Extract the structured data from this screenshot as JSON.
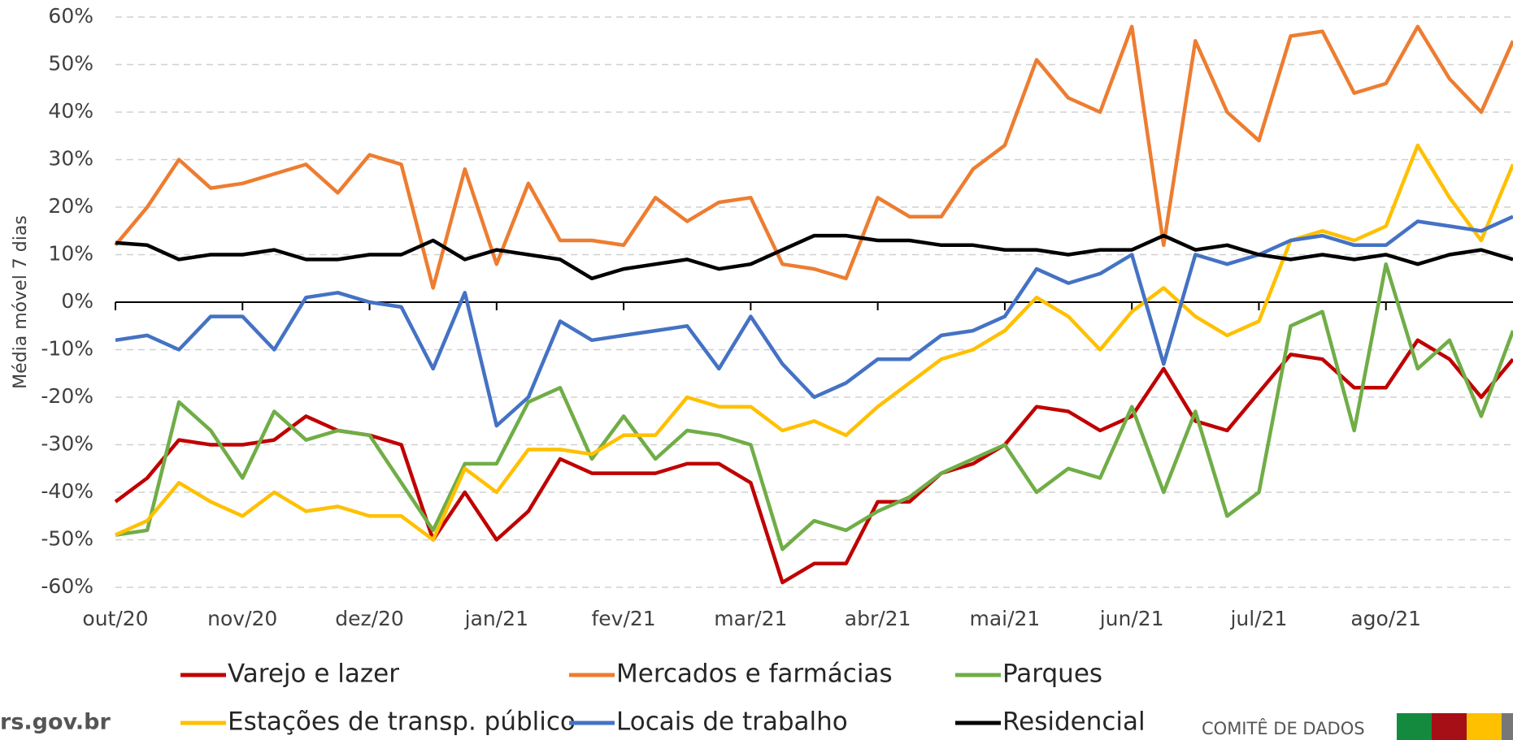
{
  "chart_data": {
    "type": "line",
    "y_label": "Média móvel 7 dias",
    "categories": [
      "out/20",
      null,
      null,
      null,
      "nov/20",
      null,
      null,
      null,
      "dez/20",
      null,
      null,
      null,
      "jan/21",
      null,
      null,
      null,
      "fev/21",
      null,
      null,
      null,
      "mar/21",
      null,
      null,
      null,
      "abr/21",
      null,
      null,
      null,
      "mai/21",
      null,
      null,
      null,
      "jun/21",
      null,
      null,
      null,
      "jul/21",
      null,
      null,
      null,
      "ago/21",
      null,
      null,
      null,
      null
    ],
    "series": [
      {
        "name": "Varejo e lazer",
        "color": "#c00000",
        "values": [
          -42,
          -37,
          -29,
          -30,
          -30,
          -29,
          -24,
          -27,
          -28,
          -30,
          -50,
          -40,
          -50,
          -44,
          -33,
          -36,
          -36,
          -36,
          -34,
          -34,
          -38,
          -59,
          -55,
          -55,
          -42,
          -42,
          -36,
          -34,
          -30,
          -22,
          -23,
          -27,
          -24,
          -14,
          -25,
          -27,
          -19,
          -11,
          -12,
          -18,
          -18,
          -8,
          -12,
          -20,
          -12
        ]
      },
      {
        "name": "Mercados e farmácias",
        "color": "#ed7d31",
        "values": [
          12,
          20,
          30,
          24,
          25,
          27,
          29,
          23,
          31,
          29,
          3,
          28,
          8,
          25,
          13,
          13,
          12,
          22,
          17,
          21,
          22,
          8,
          7,
          5,
          22,
          18,
          18,
          28,
          33,
          51,
          43,
          40,
          58,
          12,
          55,
          40,
          34,
          56,
          57,
          44,
          46,
          58,
          47,
          40,
          55
        ]
      },
      {
        "name": "Parques",
        "color": "#70ad47",
        "values": [
          -49,
          -48,
          -21,
          -27,
          -37,
          -23,
          -29,
          -27,
          -28,
          -38,
          -48,
          -34,
          -34,
          -21,
          -18,
          -33,
          -24,
          -33,
          -27,
          -28,
          -30,
          -52,
          -46,
          -48,
          -44,
          -41,
          -36,
          -33,
          -30,
          -40,
          -35,
          -37,
          -22,
          -40,
          -23,
          -45,
          -40,
          -5,
          -2,
          -27,
          8,
          -14,
          -8,
          -24,
          -6
        ]
      },
      {
        "name": "Estações de transp. público",
        "color": "#ffc000",
        "values": [
          -49,
          -46,
          -38,
          -42,
          -45,
          -40,
          -44,
          -43,
          -45,
          -45,
          -50,
          -35,
          -40,
          -31,
          -31,
          -32,
          -28,
          -28,
          -20,
          -22,
          -22,
          -27,
          -25,
          -28,
          -22,
          -17,
          -12,
          -10,
          -6,
          1,
          -3,
          -10,
          -2,
          3,
          -3,
          -7,
          -4,
          13,
          15,
          13,
          16,
          33,
          22,
          13,
          29
        ]
      },
      {
        "name": "Locais de trabalho",
        "color": "#4472c4",
        "values": [
          -8,
          -7,
          -10,
          -3,
          -3,
          -10,
          1,
          2,
          0,
          -1,
          -14,
          2,
          -26,
          -20,
          -4,
          -8,
          -7,
          -6,
          -5,
          -14,
          -3,
          -13,
          -20,
          -17,
          -12,
          -12,
          -7,
          -6,
          -3,
          7,
          4,
          6,
          10,
          -13,
          10,
          8,
          10,
          13,
          14,
          12,
          12,
          17,
          16,
          15,
          18
        ]
      },
      {
        "name": "Residencial",
        "color": "#000000",
        "values": [
          12.5,
          12,
          9,
          10,
          10,
          11,
          9,
          9,
          10,
          10,
          13,
          9,
          11,
          10,
          9,
          5,
          7,
          8,
          9,
          7,
          8,
          11,
          14,
          14,
          13,
          13,
          12,
          12,
          11,
          11,
          10,
          11,
          11,
          14,
          11,
          12,
          10,
          9,
          10,
          9,
          10,
          8,
          10,
          11,
          9
        ]
      }
    ],
    "ylim": [
      -60,
      60
    ],
    "yticks": [
      {
        "value": -60,
        "label": "-60%"
      },
      {
        "value": -50,
        "label": "-50%"
      },
      {
        "value": -40,
        "label": "-40%"
      },
      {
        "value": -30,
        "label": "-30%"
      },
      {
        "value": -20,
        "label": "-20%"
      },
      {
        "value": -10,
        "label": "-10%"
      },
      {
        "value": 0,
        "label": "0%"
      },
      {
        "value": 10,
        "label": "10%"
      },
      {
        "value": 20,
        "label": "20%"
      },
      {
        "value": 30,
        "label": "30%"
      },
      {
        "value": 40,
        "label": "40%"
      },
      {
        "value": 50,
        "label": "50%"
      },
      {
        "value": 60,
        "label": "60%"
      }
    ],
    "grid": true
  },
  "footer": {
    "site": "rs.gov.br",
    "committee": "COMITÊ DE DADOS"
  }
}
